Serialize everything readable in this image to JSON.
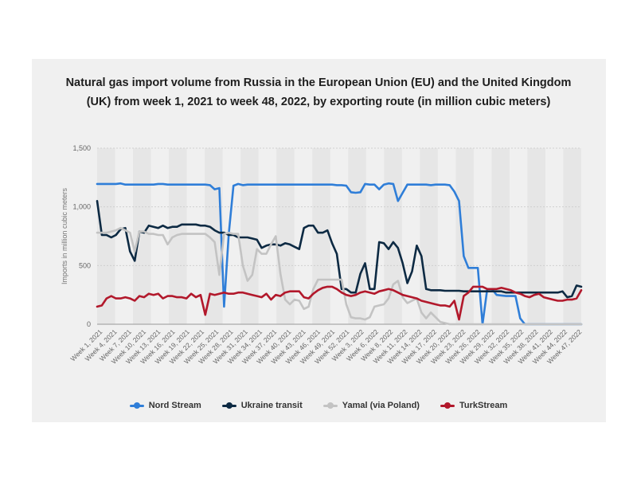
{
  "chart_data": {
    "type": "line",
    "title": "Natural gas import volume from Russia in the European Union (EU) and the United Kingdom (UK) from week 1, 2021 to week 48, 2022, by exporting route (in million cubic meters)",
    "ylabel": "Imports in million cubic meters",
    "xlabel": "",
    "ylim": [
      0,
      1500
    ],
    "yticks": [
      "0",
      "500",
      "1,000",
      "1,500"
    ],
    "grid": true,
    "legend_position": "bottom",
    "x_tick_labels": [
      "Week 1, 2021",
      "Week 4, 2021",
      "Week 7, 2021",
      "Week 10, 2021",
      "Week 13, 2021",
      "Week 16, 2021",
      "Week 19, 2021",
      "Week 22, 2021",
      "Week 25, 2021",
      "Week 28, 2021",
      "Week 31, 2021",
      "Week 34, 2021",
      "Week 37, 2021",
      "Week 40, 2021",
      "Week 43, 2021",
      "Week 46, 2021",
      "Week 49, 2021",
      "Week 52, 2021",
      "Week 3, 2022",
      "Week 6, 2022",
      "Week 8, 2022",
      "Week 11, 2022",
      "Week 14, 2022",
      "Week 17, 2022",
      "Week 20, 2022",
      "Week 23, 2022",
      "Week 26, 2022",
      "Week 29, 2022",
      "Week 32, 2022",
      "Week 35, 2022",
      "Week 38, 2022",
      "Week 41, 2022",
      "Week 44, 2022",
      "Week 47, 2022"
    ],
    "series": [
      {
        "name": "Nord Stream",
        "color": "#2f7ed8",
        "values": [
          1195,
          1195,
          1195,
          1195,
          1195,
          1200,
          1190,
          1190,
          1190,
          1190,
          1190,
          1190,
          1190,
          1195,
          1195,
          1190,
          1190,
          1190,
          1190,
          1190,
          1190,
          1190,
          1190,
          1190,
          1185,
          1150,
          1160,
          150,
          770,
          1180,
          1195,
          1185,
          1190,
          1190,
          1190,
          1190,
          1190,
          1190,
          1190,
          1190,
          1190,
          1190,
          1190,
          1190,
          1190,
          1190,
          1190,
          1190,
          1190,
          1190,
          1190,
          1185,
          1185,
          1180,
          1125,
          1120,
          1125,
          1195,
          1190,
          1190,
          1150,
          1190,
          1200,
          1195,
          1050,
          1120,
          1190,
          1190,
          1190,
          1190,
          1190,
          1185,
          1190,
          1190,
          1190,
          1185,
          1130,
          1050,
          580,
          480,
          480,
          480,
          0,
          300,
          300,
          250,
          245,
          240,
          240,
          240,
          50,
          0,
          0,
          0,
          0,
          0,
          0,
          0,
          0,
          0,
          0,
          0,
          0,
          0
        ]
      },
      {
        "name": "Ukraine transit",
        "color": "#0d2a43",
        "values": [
          1050,
          760,
          760,
          740,
          760,
          810,
          820,
          620,
          540,
          790,
          780,
          840,
          830,
          820,
          840,
          820,
          830,
          830,
          850,
          850,
          850,
          850,
          840,
          840,
          830,
          800,
          780,
          780,
          760,
          760,
          740,
          740,
          740,
          730,
          720,
          650,
          670,
          680,
          680,
          670,
          690,
          680,
          660,
          640,
          820,
          840,
          840,
          780,
          780,
          800,
          690,
          600,
          300,
          300,
          270,
          270,
          430,
          520,
          300,
          300,
          700,
          690,
          640,
          700,
          650,
          520,
          350,
          450,
          670,
          580,
          300,
          290,
          290,
          290,
          285,
          285,
          285,
          285,
          280,
          280,
          280,
          280,
          280,
          280,
          280,
          280,
          280,
          270,
          270,
          270,
          270,
          270,
          270,
          270,
          270,
          270,
          270,
          270,
          270,
          280,
          230,
          240,
          330,
          320
        ]
      },
      {
        "name": "Yamal (via Poland)",
        "color": "#c3c3c3",
        "values": [
          780,
          780,
          780,
          790,
          800,
          820,
          800,
          780,
          620,
          790,
          790,
          770,
          770,
          760,
          760,
          680,
          740,
          760,
          770,
          770,
          770,
          770,
          770,
          770,
          740,
          700,
          420,
          770,
          780,
          770,
          770,
          500,
          370,
          420,
          640,
          600,
          600,
          680,
          750,
          430,
          210,
          170,
          210,
          200,
          130,
          150,
          300,
          380,
          380,
          380,
          380,
          380,
          380,
          170,
          60,
          50,
          50,
          40,
          60,
          150,
          160,
          170,
          220,
          340,
          370,
          230,
          180,
          200,
          220,
          100,
          50,
          100,
          60,
          20,
          10,
          0,
          0,
          0,
          0,
          0,
          0,
          0,
          0,
          0,
          0,
          0,
          0,
          0,
          0,
          0,
          0,
          0,
          0,
          0,
          0,
          0,
          0,
          0,
          0,
          0,
          0,
          0,
          0,
          0
        ]
      },
      {
        "name": "TurkStream",
        "color": "#b2182b",
        "values": [
          150,
          160,
          220,
          240,
          220,
          220,
          230,
          220,
          200,
          240,
          230,
          260,
          250,
          260,
          220,
          240,
          240,
          230,
          230,
          220,
          260,
          230,
          250,
          80,
          260,
          250,
          260,
          270,
          260,
          260,
          270,
          270,
          260,
          250,
          240,
          230,
          260,
          210,
          250,
          240,
          270,
          280,
          280,
          280,
          230,
          220,
          260,
          290,
          310,
          320,
          320,
          300,
          270,
          250,
          240,
          250,
          270,
          280,
          270,
          260,
          280,
          290,
          300,
          290,
          270,
          250,
          240,
          230,
          220,
          200,
          190,
          180,
          170,
          160,
          160,
          150,
          200,
          40,
          240,
          270,
          320,
          320,
          320,
          300,
          300,
          300,
          310,
          300,
          290,
          270,
          260,
          240,
          230,
          250,
          260,
          230,
          220,
          210,
          200,
          200,
          210,
          210,
          220,
          290
        ]
      }
    ]
  },
  "legend": {
    "nord_stream": "Nord Stream",
    "ukraine_transit": "Ukraine transit",
    "yamal": "Yamal (via Poland)",
    "turkstream": "TurkStream"
  }
}
